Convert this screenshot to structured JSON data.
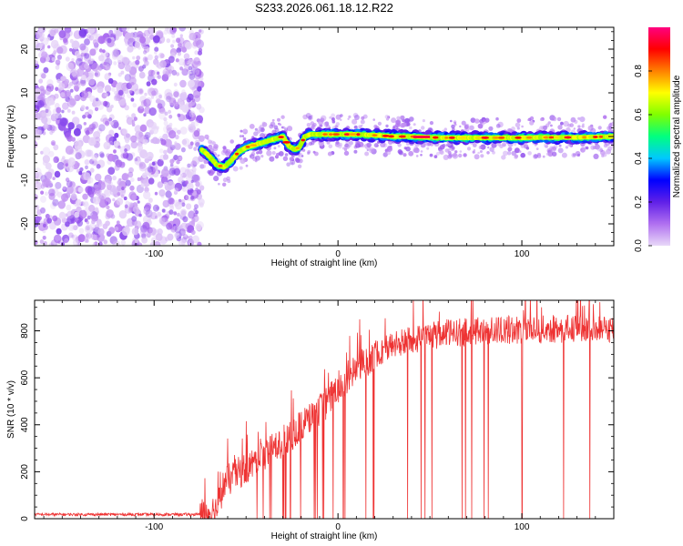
{
  "title": "S233.2026.061.18.12.R22",
  "chart_data": [
    {
      "type": "heatmap",
      "name": "spectrogram",
      "xlabel": "Height of straight line (km)",
      "ylabel": "Frequency (Hz)",
      "xlim": [
        -165,
        150
      ],
      "ylim": [
        -25,
        25
      ],
      "xticks": [
        -100,
        0,
        100
      ],
      "xtick_labels": [
        "-100",
        "0",
        "100"
      ],
      "yticks": [
        -20,
        -10,
        0,
        10,
        20
      ],
      "ytick_labels": [
        "-20",
        "-10",
        "0",
        "10",
        "20"
      ],
      "colorbar": {
        "label": "Normalized spectral amplitude",
        "range": [
          0,
          1
        ],
        "ticks": [
          0.0,
          0.2,
          0.4,
          0.6,
          0.8
        ],
        "tick_labels": [
          "0.0",
          "0.2",
          "0.4",
          "0.6",
          "0.8"
        ],
        "colormap": [
          "#e8d8f8",
          "#b070f0",
          "#6020e8",
          "#0000ff",
          "#00c8ff",
          "#00ff80",
          "#80ff00",
          "#ffff00",
          "#ff8000",
          "#ff0000",
          "#ff0080"
        ]
      },
      "noise_region_x": [
        -165,
        -74
      ],
      "ridge": {
        "x": [
          -74,
          -70,
          -66,
          -62,
          -58,
          -54,
          -50,
          -46,
          -42,
          -38,
          -34,
          -30,
          -27,
          -24,
          -21,
          -18,
          -15,
          -12,
          -8,
          -4,
          0,
          10,
          20,
          30,
          40,
          50,
          60,
          70,
          80,
          90,
          100,
          110,
          120,
          130,
          140,
          150
        ],
        "y": [
          -3,
          -4.5,
          -6.5,
          -7,
          -5.5,
          -3.5,
          -2.5,
          -2,
          -1.5,
          -1,
          -0.5,
          0,
          -2,
          -3,
          -2.5,
          0,
          0.5,
          0.5,
          0.5,
          0.5,
          0.5,
          0.5,
          0.3,
          0,
          0,
          -0.2,
          -0.3,
          -0.3,
          -0.3,
          -0.3,
          -0.3,
          -0.2,
          -0.2,
          -0.2,
          -0.1,
          0
        ]
      }
    },
    {
      "type": "line",
      "name": "snr",
      "xlabel": "Height of straight line (km)",
      "ylabel": "SNR (10 * v/v)",
      "xlim": [
        -165,
        150
      ],
      "ylim": [
        0,
        930
      ],
      "xticks": [
        -100,
        0,
        100
      ],
      "xtick_labels": [
        "-100",
        "0",
        "100"
      ],
      "yticks": [
        0,
        200,
        400,
        600,
        800
      ],
      "ytick_labels": [
        "0",
        "200",
        "400",
        "600",
        "800"
      ],
      "color": "#ee3333",
      "envelope": {
        "x": [
          -165,
          -75,
          -66,
          -62,
          -55,
          -45,
          -35,
          -25,
          -15,
          -5,
          0,
          10,
          20,
          30,
          45,
          60,
          80,
          100,
          120,
          150
        ],
        "y": [
          18,
          18,
          40,
          150,
          190,
          240,
          300,
          360,
          430,
          500,
          560,
          640,
          700,
          740,
          770,
          790,
          800,
          805,
          808,
          810
        ]
      },
      "dropout_range_x": [
        -45,
        145
      ]
    }
  ]
}
